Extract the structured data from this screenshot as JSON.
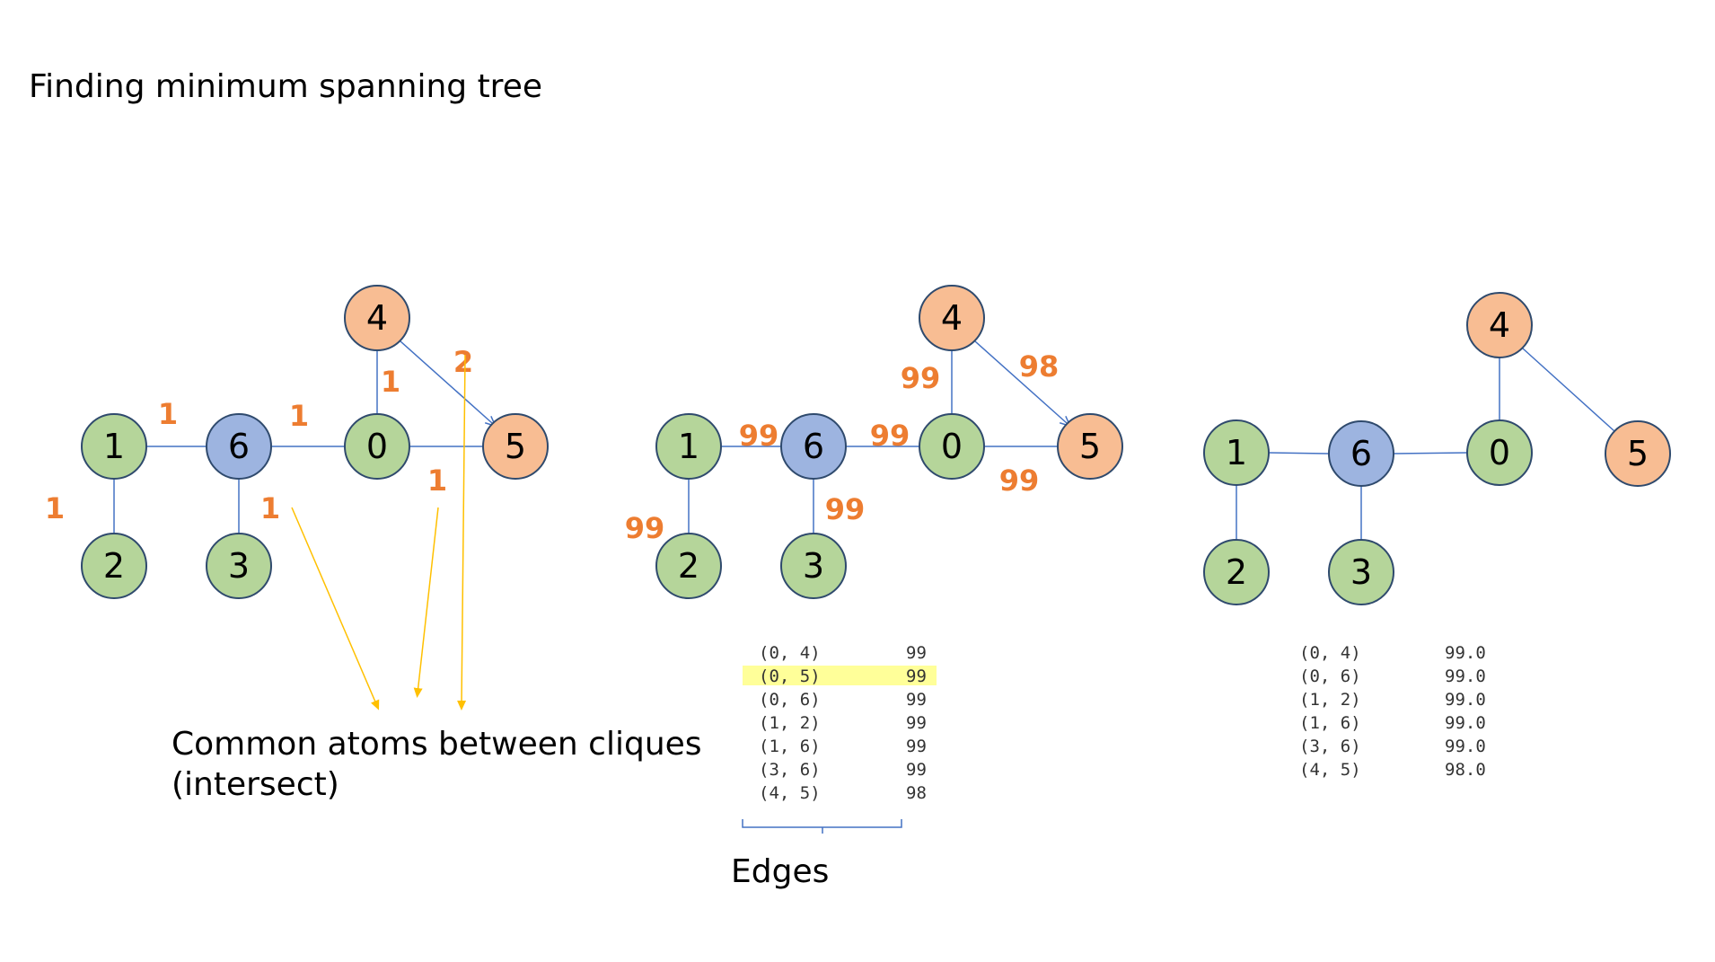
{
  "title": "Finding minimum spanning tree",
  "caption": {
    "line1": "Common atoms between cliques",
    "line2": "(intersect)"
  },
  "edges_caption": "Edges",
  "colors": {
    "green": "#B5D59A",
    "blue": "#9DB4E0",
    "orange": "#F8BD93",
    "node_stroke": "#2F4A6D",
    "edge": "#4472C4",
    "weight": "#ED7D31",
    "arrow": "#FFC000",
    "highlight": "#FFFF99"
  },
  "graphs": [
    {
      "nodes": [
        {
          "id": "0",
          "color": "green"
        },
        {
          "id": "1",
          "color": "green"
        },
        {
          "id": "2",
          "color": "green"
        },
        {
          "id": "3",
          "color": "green"
        },
        {
          "id": "4",
          "color": "orange"
        },
        {
          "id": "5",
          "color": "orange"
        },
        {
          "id": "6",
          "color": "blue"
        }
      ],
      "edge_weights": [
        "1",
        "1",
        "1",
        "1",
        "1",
        "1",
        "2"
      ]
    },
    {
      "nodes": [
        {
          "id": "0",
          "color": "green"
        },
        {
          "id": "1",
          "color": "green"
        },
        {
          "id": "2",
          "color": "green"
        },
        {
          "id": "3",
          "color": "green"
        },
        {
          "id": "4",
          "color": "orange"
        },
        {
          "id": "5",
          "color": "orange"
        },
        {
          "id": "6",
          "color": "blue"
        }
      ],
      "edge_weights": [
        "99",
        "99",
        "99",
        "99",
        "99",
        "99",
        "98"
      ]
    },
    {
      "nodes": [
        {
          "id": "0",
          "color": "green"
        },
        {
          "id": "1",
          "color": "green"
        },
        {
          "id": "2",
          "color": "green"
        },
        {
          "id": "3",
          "color": "green"
        },
        {
          "id": "4",
          "color": "orange"
        },
        {
          "id": "5",
          "color": "orange"
        },
        {
          "id": "6",
          "color": "blue"
        }
      ]
    }
  ],
  "edge_table": {
    "rows": [
      {
        "edge": "(0, 4)",
        "weight": "99"
      },
      {
        "edge": "(0, 5)",
        "weight": "99",
        "highlighted": true
      },
      {
        "edge": "(0, 6)",
        "weight": "99"
      },
      {
        "edge": "(1, 2)",
        "weight": "99"
      },
      {
        "edge": "(1, 6)",
        "weight": "99"
      },
      {
        "edge": "(3, 6)",
        "weight": "99"
      },
      {
        "edge": "(4, 5)",
        "weight": "98"
      }
    ]
  },
  "mst_table": {
    "rows": [
      {
        "edge": "(0, 4)",
        "weight": "99.0"
      },
      {
        "edge": "(0, 6)",
        "weight": "99.0"
      },
      {
        "edge": "(1, 2)",
        "weight": "99.0"
      },
      {
        "edge": "(1, 6)",
        "weight": "99.0"
      },
      {
        "edge": "(3, 6)",
        "weight": "99.0"
      },
      {
        "edge": "(4, 5)",
        "weight": "98.0"
      }
    ]
  }
}
